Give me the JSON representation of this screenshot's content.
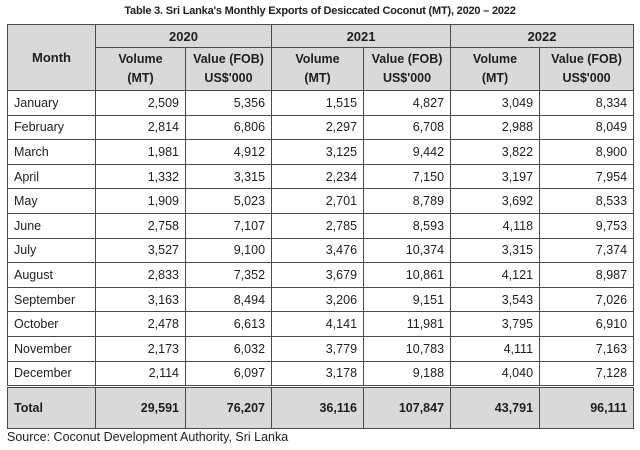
{
  "caption": "Table 3. Sri Lanka's Monthly Exports of Desiccated Coconut (MT), 2020 – 2022",
  "header": {
    "month": "Month",
    "years": [
      "2020",
      "2021",
      "2022"
    ],
    "volume_line1": "Volume",
    "volume_line2": "(MT)",
    "value_line1": "Value (FOB)",
    "value_line2": "US$'000"
  },
  "rows": [
    {
      "month": "January",
      "v2020": "2,509",
      "f2020": "5,356",
      "v2021": "1,515",
      "f2021": "4,827",
      "v2022": "3,049",
      "f2022": "8,334"
    },
    {
      "month": "February",
      "v2020": "2,814",
      "f2020": "6,806",
      "v2021": "2,297",
      "f2021": "6,708",
      "v2022": "2,988",
      "f2022": "8,049"
    },
    {
      "month": "March",
      "v2020": "1,981",
      "f2020": "4,912",
      "v2021": "3,125",
      "f2021": "9,442",
      "v2022": "3,822",
      "f2022": "8,900"
    },
    {
      "month": "April",
      "v2020": "1,332",
      "f2020": "3,315",
      "v2021": "2,234",
      "f2021": "7,150",
      "v2022": "3,197",
      "f2022": "7,954"
    },
    {
      "month": "May",
      "v2020": "1,909",
      "f2020": "5,023",
      "v2021": "2,701",
      "f2021": "8,789",
      "v2022": "3,692",
      "f2022": "8,533"
    },
    {
      "month": "June",
      "v2020": "2,758",
      "f2020": "7,107",
      "v2021": "2,785",
      "f2021": "8,593",
      "v2022": "4,118",
      "f2022": "9,753"
    },
    {
      "month": "July",
      "v2020": "3,527",
      "f2020": "9,100",
      "v2021": "3,476",
      "f2021": "10,374",
      "v2022": "3,315",
      "f2022": "7,374"
    },
    {
      "month": "August",
      "v2020": "2,833",
      "f2020": "7,352",
      "v2021": "3,679",
      "f2021": "10,861",
      "v2022": "4,121",
      "f2022": "8,987"
    },
    {
      "month": "September",
      "v2020": "3,163",
      "f2020": "8,494",
      "v2021": "3,206",
      "f2021": "9,151",
      "v2022": "3,543",
      "f2022": "7,026"
    },
    {
      "month": "October",
      "v2020": "2,478",
      "f2020": "6,613",
      "v2021": "4,141",
      "f2021": "11,981",
      "v2022": "3,795",
      "f2022": "6,910"
    },
    {
      "month": "November",
      "v2020": "2,173",
      "f2020": "6,032",
      "v2021": "3,779",
      "f2021": "10,783",
      "v2022": "4,111",
      "f2022": "7,163"
    },
    {
      "month": "December",
      "v2020": "2,114",
      "f2020": "6,097",
      "v2021": "3,178",
      "f2021": "9,188",
      "v2022": "4,040",
      "f2022": "7,128"
    }
  ],
  "total": {
    "label": "Total",
    "v2020": "29,591",
    "f2020": "76,207",
    "v2021": "36,116",
    "f2021": "107,847",
    "v2022": "43,791",
    "f2022": "96,111"
  },
  "source": "Source: Coconut Development Authority, Sri Lanka",
  "colors": {
    "header_bg": "#d9d9d9",
    "border": "#4a4a4a",
    "text": "#1e1e1e"
  }
}
